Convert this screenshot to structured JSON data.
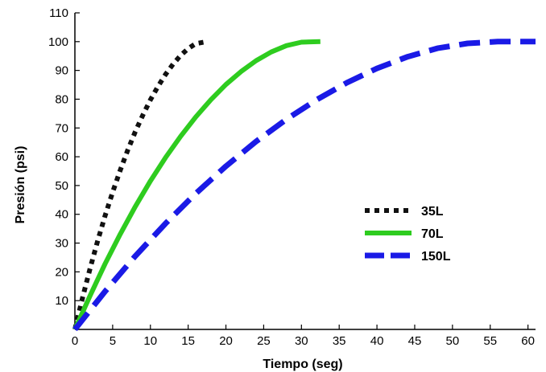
{
  "chart_data": {
    "type": "line",
    "xlabel": "Tiempo (seg)",
    "ylabel": "Presión (psi)",
    "xlim": [
      0,
      61
    ],
    "ylim": [
      0,
      110
    ],
    "xticks": [
      0,
      5,
      10,
      15,
      20,
      25,
      30,
      35,
      40,
      45,
      50,
      55,
      60
    ],
    "yticks": [
      10,
      20,
      30,
      40,
      50,
      60,
      70,
      80,
      90,
      100,
      110
    ],
    "grid": false,
    "legend_position": "right",
    "series": [
      {
        "name": "35L",
        "color": "#111111",
        "style": "dotted",
        "x": [
          0,
          1,
          2,
          3,
          4,
          5,
          6,
          7,
          8,
          9,
          10,
          11,
          12,
          13,
          14,
          15,
          16,
          17.5
        ],
        "y": [
          0,
          10.9,
          21.1,
          30.6,
          39.5,
          47.7,
          55.3,
          62.3,
          68.7,
          74.5,
          79.8,
          84.4,
          88.6,
          92.2,
          95.2,
          97.6,
          99.3,
          100
        ]
      },
      {
        "name": "70L",
        "color": "#2ecc1f",
        "style": "solid",
        "x": [
          0,
          2,
          4,
          6,
          8,
          10,
          12,
          14,
          16,
          18,
          20,
          22,
          24,
          26,
          28,
          30,
          32.5
        ],
        "y": [
          0,
          11.7,
          22.8,
          33.1,
          42.7,
          51.6,
          59.7,
          67.1,
          73.8,
          79.8,
          85.1,
          89.6,
          93.4,
          96.4,
          98.6,
          99.8,
          100
        ]
      },
      {
        "name": "150L",
        "color": "#1a1ae6",
        "style": "dashed",
        "x": [
          0,
          4,
          8,
          12,
          16,
          20,
          24,
          28,
          32,
          36,
          40,
          44,
          48,
          52,
          56,
          58,
          61
        ],
        "y": [
          0,
          13.2,
          25.5,
          36.8,
          47.2,
          56.7,
          65.3,
          73.0,
          79.8,
          85.7,
          90.7,
          94.7,
          97.7,
          99.4,
          100,
          100,
          100
        ]
      }
    ]
  }
}
